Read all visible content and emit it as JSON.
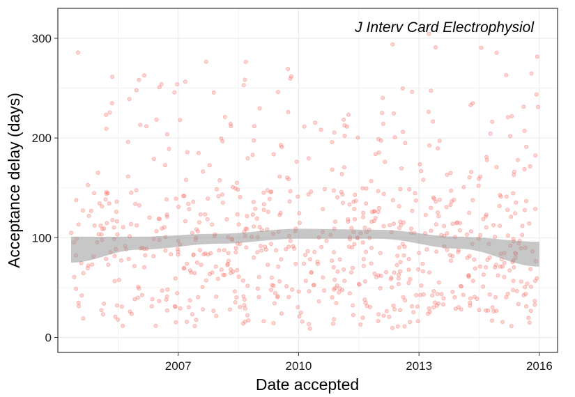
{
  "chart_data": {
    "type": "scatter",
    "title": "J Interv Card Electrophysiol",
    "xlabel": "Date accepted",
    "ylabel": "Acceptance delay (days)",
    "x_ticks": [
      "2007",
      "2010",
      "2013",
      "2016"
    ],
    "y_ticks": [
      "0",
      "100",
      "200",
      "300"
    ],
    "xlim": [
      "2004-01-01",
      "2016-06-15"
    ],
    "ylim": [
      -15,
      330
    ],
    "x_range_of_points": [
      "2004-05-01",
      "2015-12-31"
    ],
    "point_count_approx": 780,
    "point_color": "#f8766d",
    "point_alpha": 0.3,
    "grid": true,
    "smooth": {
      "type": "loess-style trend with confidence band",
      "band_color": "#999999",
      "x": [
        "2004-05-01",
        "2006-01-01",
        "2008-01-01",
        "2010-01-01",
        "2012-01-01",
        "2014-01-01",
        "2015-12-31"
      ],
      "upper": [
        101,
        101,
        104,
        109,
        108,
        101,
        96
      ],
      "lower": [
        75,
        88,
        94,
        99,
        99,
        89,
        71
      ]
    },
    "point_density_by_year": [
      {
        "year": "2004",
        "median": 95,
        "count": 35
      },
      {
        "year": "2005",
        "median": 85,
        "count": 60
      },
      {
        "year": "2006",
        "median": 90,
        "count": 55
      },
      {
        "year": "2007",
        "median": 105,
        "count": 65
      },
      {
        "year": "2008",
        "median": 110,
        "count": 75
      },
      {
        "year": "2009",
        "median": 100,
        "count": 65
      },
      {
        "year": "2010",
        "median": 95,
        "count": 55
      },
      {
        "year": "2011",
        "median": 110,
        "count": 80
      },
      {
        "year": "2012",
        "median": 105,
        "count": 75
      },
      {
        "year": "2013",
        "median": 95,
        "count": 70
      },
      {
        "year": "2014",
        "median": 85,
        "count": 65
      },
      {
        "year": "2015",
        "median": 85,
        "count": 80
      }
    ]
  }
}
